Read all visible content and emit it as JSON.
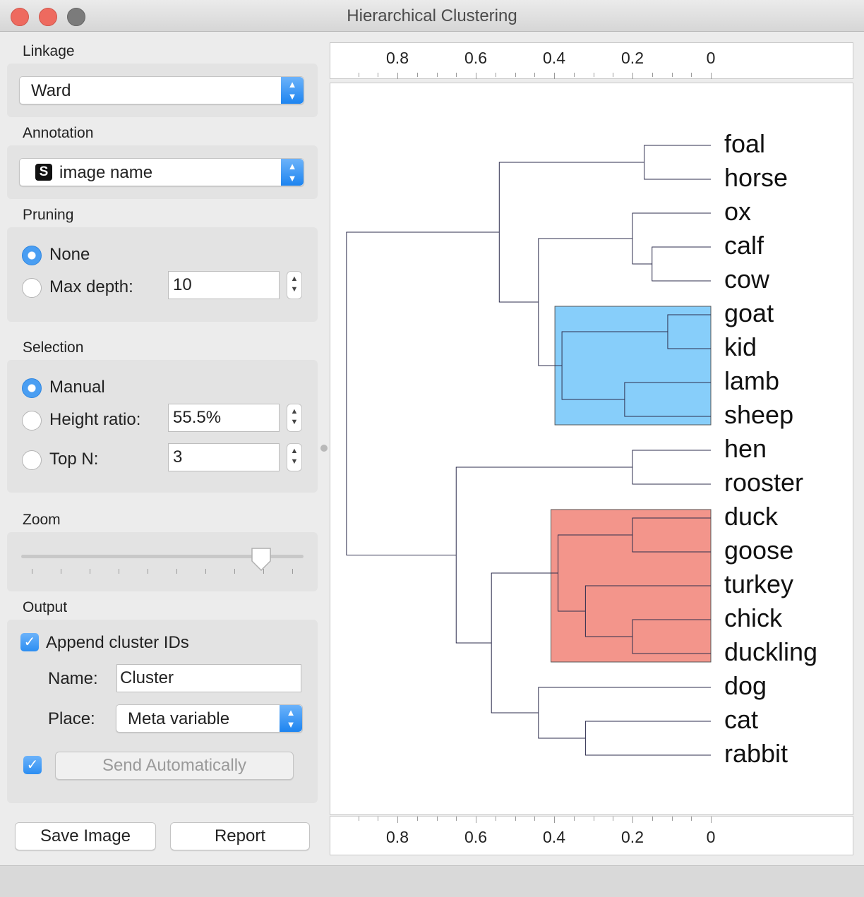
{
  "window": {
    "title": "Hierarchical Clustering"
  },
  "linkage": {
    "label": "Linkage",
    "value": "Ward"
  },
  "annotation": {
    "label": "Annotation",
    "icon": "string-variable-icon",
    "icon_glyph": "S",
    "value": "image name"
  },
  "pruning": {
    "label": "Pruning",
    "none_label": "None",
    "max_depth_label": "Max depth:",
    "max_depth_value": "10",
    "selected": "none"
  },
  "selection": {
    "label": "Selection",
    "manual_label": "Manual",
    "height_ratio_label": "Height ratio:",
    "height_ratio_value": "55.5%",
    "top_n_label": "Top N:",
    "top_n_value": "3",
    "selected": "manual"
  },
  "zoom": {
    "label": "Zoom",
    "level": 0.85
  },
  "output": {
    "label": "Output",
    "append_label": "Append cluster IDs",
    "append_checked": true,
    "name_label": "Name:",
    "name_value": "Cluster",
    "place_label": "Place:",
    "place_value": "Meta variable",
    "auto_checked": true,
    "send_label": "Send Automatically"
  },
  "buttons": {
    "save_image": "Save Image",
    "report": "Report"
  },
  "colors": {
    "cluster1": "#87cefa",
    "cluster2": "#f3958b",
    "line": "#2e2e4e",
    "accent": "#2c8ef2"
  },
  "axis": {
    "ticks": [
      "0.8",
      "0.6",
      "0.4",
      "0.2",
      "0"
    ]
  },
  "dendrogram": {
    "leaves": [
      "foal",
      "horse",
      "ox",
      "calf",
      "cow",
      "goat",
      "kid",
      "lamb",
      "sheep",
      "hen",
      "rooster",
      "duck",
      "goose",
      "turkey",
      "chick",
      "duckling",
      "dog",
      "cat",
      "rabbit"
    ],
    "merges": [
      {
        "children": [
          0,
          1
        ],
        "height": 0.17
      },
      {
        "children": [
          3,
          4
        ],
        "height": 0.15
      },
      {
        "children": [
          2,
          "n1"
        ],
        "height": 0.2
      },
      {
        "children": [
          5,
          6
        ],
        "height": 0.11
      },
      {
        "children": [
          7,
          8
        ],
        "height": 0.22
      },
      {
        "children": [
          "n3",
          "n4"
        ],
        "height": 0.38
      },
      {
        "children": [
          "n2",
          "n5"
        ],
        "height": 0.44
      },
      {
        "children": [
          "n0",
          "n6"
        ],
        "height": 0.54
      },
      {
        "children": [
          9,
          10
        ],
        "height": 0.2
      },
      {
        "children": [
          11,
          12
        ],
        "height": 0.2
      },
      {
        "children": [
          14,
          15
        ],
        "height": 0.2
      },
      {
        "children": [
          13,
          "n10"
        ],
        "height": 0.32
      },
      {
        "children": [
          "n9",
          "n11"
        ],
        "height": 0.39
      },
      {
        "children": [
          17,
          18
        ],
        "height": 0.32
      },
      {
        "children": [
          16,
          "n13"
        ],
        "height": 0.44
      },
      {
        "children": [
          "n12",
          "n14"
        ],
        "height": 0.56
      },
      {
        "children": [
          "n8",
          "n15"
        ],
        "height": 0.65
      },
      {
        "children": [
          "n7",
          "n16"
        ],
        "height": 0.93
      }
    ],
    "clusters": [
      {
        "leaves": [
          5,
          6,
          7,
          8
        ],
        "color": "#87cefa"
      },
      {
        "leaves": [
          11,
          12,
          13,
          14,
          15
        ],
        "color": "#f3958b"
      }
    ]
  }
}
